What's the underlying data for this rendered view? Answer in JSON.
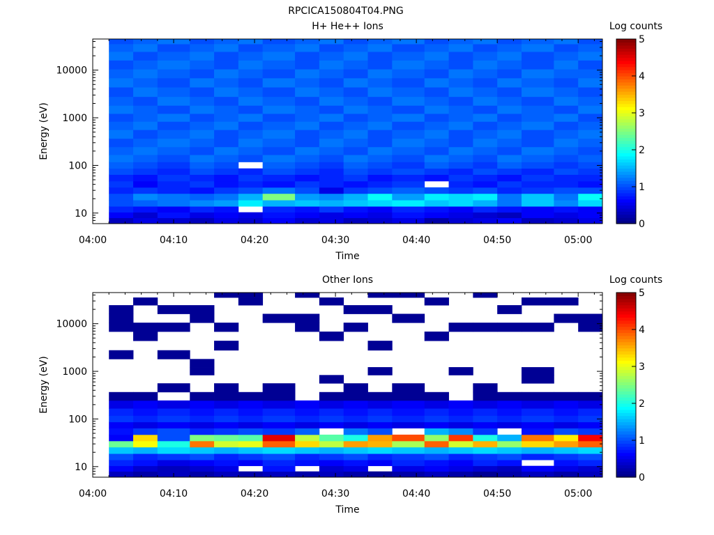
{
  "figure_title": "RPCICA150804T04.PNG",
  "chart_data": [
    {
      "type": "heatmap",
      "title": "H+ He++ Ions",
      "xlabel": "Time",
      "ylabel": "Energy (eV)",
      "colorbar_label": "Log counts",
      "colormap": "jet",
      "x_ticks": [
        "04:00",
        "04:10",
        "04:20",
        "04:30",
        "04:40",
        "04:50",
        "05:00"
      ],
      "x_range": [
        "04:00",
        "05:03"
      ],
      "y_scale": "log",
      "y_ticks": [
        "10",
        "100",
        "1000",
        "10000"
      ],
      "y_range": [
        6,
        45000
      ],
      "color_range": [
        0,
        5
      ],
      "colorbar_ticks": [
        "0",
        "1",
        "2",
        "3",
        "4",
        "5"
      ],
      "time_bins": [
        "04:02",
        "04:05",
        "04:08",
        "04:12",
        "04:15",
        "04:18",
        "04:21",
        "04:25",
        "04:28",
        "04:31",
        "04:34",
        "04:37",
        "04:41",
        "04:44",
        "04:47",
        "04:50",
        "04:53",
        "04:57",
        "05:00"
      ],
      "energy_bands_eV": [
        7,
        9,
        12,
        16,
        22,
        30,
        40,
        55,
        75,
        100,
        140,
        200,
        300,
        450,
        700,
        1000,
        1500,
        2200,
        3500,
        5500,
        8500,
        13000,
        20000,
        30000,
        42000
      ],
      "values_log_counts": [
        [
          0.3,
          0.5,
          0.4,
          0.3,
          0.5,
          0.4,
          0.6,
          0.4,
          0.5,
          0.3,
          0.4,
          0.5,
          0.2,
          0.4,
          0.5,
          0.6,
          0.3,
          0.4,
          0.5
        ],
        [
          0.6,
          0.4,
          0.7,
          0.5,
          0.6,
          0.5,
          0.7,
          0.6,
          0.5,
          0.6,
          0.5,
          0.7,
          0.6,
          0.5,
          0.4,
          0.3,
          0.6,
          0.5,
          0.6
        ],
        [
          0.8,
          0.7,
          0.6,
          0.8,
          0.7,
          null,
          0.8,
          0.7,
          0.9,
          0.7,
          0.6,
          0.8,
          0.7,
          0.6,
          0.8,
          0.7,
          0.6,
          0.7,
          0.6
        ],
        [
          1.0,
          1.1,
          1.2,
          1.3,
          1.4,
          1.8,
          1.5,
          1.6,
          1.5,
          1.6,
          1.7,
          1.8,
          1.6,
          1.7,
          1.5,
          1.2,
          1.6,
          1.3,
          1.7
        ],
        [
          1.0,
          1.3,
          1.2,
          1.1,
          1.2,
          1.5,
          2.5,
          1.4,
          1.3,
          1.5,
          1.9,
          1.4,
          1.8,
          1.7,
          1.8,
          1.2,
          1.6,
          1.2,
          1.9
        ],
        [
          0.8,
          0.9,
          0.8,
          0.7,
          0.9,
          1.0,
          1.2,
          1.0,
          0.5,
          0.9,
          1.0,
          1.1,
          1.0,
          0.9,
          1.0,
          0.8,
          0.9,
          1.0,
          1.0
        ],
        [
          0.9,
          0.6,
          0.8,
          0.9,
          0.7,
          0.8,
          0.7,
          0.9,
          0.8,
          0.7,
          0.8,
          0.9,
          null,
          0.8,
          0.7,
          0.9,
          0.8,
          0.8,
          0.7
        ],
        [
          0.8,
          0.7,
          0.9,
          0.8,
          0.7,
          0.9,
          0.8,
          0.7,
          0.8,
          0.9,
          0.7,
          0.8,
          0.7,
          0.9,
          0.8,
          0.7,
          0.9,
          0.8,
          0.8
        ],
        [
          1.0,
          0.9,
          0.8,
          1.0,
          0.9,
          0.8,
          1.0,
          0.9,
          0.8,
          1.0,
          0.9,
          1.0,
          0.9,
          0.8,
          1.0,
          0.9,
          0.8,
          1.0,
          0.9
        ],
        [
          1.1,
          1.0,
          0.9,
          1.1,
          1.0,
          null,
          1.1,
          1.0,
          0.9,
          1.1,
          1.0,
          0.9,
          1.1,
          1.0,
          0.9,
          1.1,
          1.0,
          0.9,
          1.0
        ],
        [
          1.2,
          1.1,
          1.0,
          1.2,
          1.1,
          1.0,
          1.2,
          1.1,
          1.0,
          1.2,
          1.1,
          1.0,
          1.2,
          1.1,
          1.0,
          1.2,
          1.1,
          1.0,
          1.1
        ],
        [
          1.1,
          1.2,
          1.1,
          1.0,
          1.2,
          1.1,
          1.0,
          1.2,
          1.1,
          1.0,
          1.2,
          1.1,
          1.0,
          1.2,
          1.1,
          1.0,
          1.2,
          1.1,
          1.0
        ],
        [
          1.0,
          1.1,
          1.2,
          1.1,
          1.0,
          1.2,
          1.1,
          1.0,
          1.2,
          1.1,
          1.0,
          1.2,
          1.1,
          1.0,
          1.2,
          1.1,
          1.0,
          1.2,
          1.1
        ],
        [
          1.2,
          1.0,
          1.1,
          1.2,
          1.0,
          1.1,
          1.2,
          1.0,
          1.1,
          1.2,
          1.0,
          1.1,
          1.2,
          1.0,
          1.1,
          1.2,
          1.0,
          1.1,
          1.2
        ],
        [
          1.1,
          1.2,
          1.0,
          1.1,
          1.2,
          1.0,
          1.1,
          1.2,
          1.0,
          1.1,
          1.2,
          1.0,
          1.1,
          1.2,
          1.0,
          1.1,
          1.2,
          1.0,
          1.1
        ],
        [
          1.0,
          1.1,
          1.2,
          1.0,
          1.1,
          1.2,
          1.0,
          1.1,
          1.2,
          1.0,
          1.1,
          1.2,
          1.0,
          1.1,
          1.2,
          1.0,
          1.1,
          1.2,
          1.0
        ],
        [
          1.2,
          1.1,
          1.0,
          1.2,
          1.1,
          1.0,
          1.2,
          1.1,
          1.0,
          1.2,
          1.1,
          1.0,
          1.2,
          1.1,
          1.0,
          1.2,
          1.1,
          1.0,
          1.2
        ],
        [
          1.1,
          1.0,
          1.2,
          1.1,
          1.0,
          1.2,
          1.1,
          1.0,
          1.2,
          1.1,
          1.0,
          1.2,
          1.1,
          1.0,
          1.2,
          1.1,
          1.0,
          1.2,
          1.1
        ],
        [
          1.0,
          1.2,
          1.1,
          1.0,
          1.2,
          1.1,
          1.0,
          1.2,
          1.1,
          1.0,
          1.2,
          1.1,
          1.0,
          1.2,
          1.1,
          1.0,
          1.2,
          1.1,
          1.0
        ],
        [
          1.2,
          1.1,
          1.0,
          1.2,
          1.1,
          1.0,
          1.2,
          1.1,
          1.0,
          1.2,
          1.1,
          1.0,
          1.2,
          1.1,
          1.0,
          1.2,
          1.1,
          1.0,
          1.2
        ],
        [
          1.1,
          1.2,
          1.1,
          1.0,
          1.2,
          1.1,
          1.0,
          1.2,
          1.1,
          1.0,
          1.2,
          1.1,
          1.0,
          1.2,
          1.1,
          1.0,
          1.2,
          1.1,
          1.1
        ],
        [
          1.0,
          1.1,
          1.2,
          1.1,
          1.0,
          1.2,
          1.1,
          1.0,
          1.2,
          1.1,
          1.0,
          1.2,
          1.1,
          1.0,
          1.2,
          1.1,
          1.0,
          1.2,
          1.0
        ],
        [
          1.2,
          1.0,
          1.1,
          1.2,
          1.0,
          1.1,
          1.2,
          1.0,
          1.1,
          1.2,
          1.0,
          1.1,
          1.2,
          1.0,
          1.1,
          1.2,
          1.0,
          1.1,
          1.2
        ],
        [
          1.1,
          1.2,
          1.0,
          1.1,
          1.2,
          1.0,
          1.1,
          1.2,
          1.0,
          1.1,
          1.2,
          1.0,
          1.1,
          1.2,
          1.0,
          1.1,
          1.2,
          1.0,
          1.1
        ],
        [
          1.0,
          1.1,
          1.2,
          1.0,
          1.1,
          1.2,
          1.0,
          1.1,
          1.2,
          1.0,
          1.1,
          1.2,
          1.0,
          1.1,
          1.2,
          1.0,
          1.1,
          1.2,
          1.0
        ]
      ]
    },
    {
      "type": "heatmap",
      "title": "Other Ions",
      "xlabel": "Time",
      "ylabel": "Energy (eV)",
      "colorbar_label": "Log counts",
      "colormap": "jet",
      "x_ticks": [
        "04:00",
        "04:10",
        "04:20",
        "04:30",
        "04:40",
        "04:50",
        "05:00"
      ],
      "x_range": [
        "04:00",
        "05:03"
      ],
      "y_scale": "log",
      "y_ticks": [
        "10",
        "100",
        "1000",
        "10000"
      ],
      "y_range": [
        6,
        45000
      ],
      "color_range": [
        0,
        5
      ],
      "colorbar_ticks": [
        "0",
        "1",
        "2",
        "3",
        "4",
        "5"
      ],
      "time_bins": [
        "04:02",
        "04:05",
        "04:08",
        "04:12",
        "04:15",
        "04:18",
        "04:21",
        "04:25",
        "04:28",
        "04:31",
        "04:34",
        "04:37",
        "04:41",
        "04:44",
        "04:47",
        "04:50",
        "04:53",
        "04:57",
        "05:00"
      ],
      "energy_bands_eV": [
        7,
        9,
        12,
        16,
        22,
        30,
        40,
        55,
        75,
        100,
        140,
        200,
        300,
        450,
        700,
        1000,
        1500,
        2200,
        3500,
        5500,
        8500,
        13000,
        20000,
        30000,
        42000
      ],
      "values_log_counts": [
        [
          0.3,
          0.2,
          0.3,
          0.2,
          0.3,
          0.2,
          0.3,
          0.2,
          0.3,
          0.2,
          0.1,
          0.2,
          0.3,
          0.2,
          0.1,
          0.2,
          0.3,
          0.2,
          0.3
        ],
        [
          0.6,
          0.4,
          0.3,
          0.4,
          0.5,
          null,
          0.7,
          null,
          0.4,
          0.5,
          null,
          0.5,
          0.6,
          0.5,
          0.4,
          0.3,
          0.6,
          0.5,
          0.4
        ],
        [
          0.8,
          0.7,
          0.5,
          0.6,
          0.7,
          0.6,
          0.8,
          0.7,
          0.6,
          0.7,
          0.6,
          0.8,
          0.7,
          0.6,
          0.8,
          0.7,
          null,
          0.7,
          0.8
        ],
        [
          1.0,
          0.8,
          0.9,
          1.0,
          0.8,
          0.9,
          1.0,
          0.8,
          0.9,
          1.0,
          0.8,
          0.9,
          1.0,
          0.8,
          0.9,
          1.0,
          0.8,
          0.9,
          1.0
        ],
        [
          1.6,
          1.5,
          1.7,
          1.6,
          1.5,
          1.6,
          1.7,
          1.6,
          1.5,
          1.6,
          1.7,
          1.6,
          1.5,
          1.6,
          1.7,
          1.6,
          1.5,
          1.6,
          1.7
        ],
        [
          2.4,
          3.1,
          2.0,
          3.8,
          2.9,
          3.0,
          3.9,
          3.3,
          2.8,
          3.6,
          3.5,
          2.7,
          3.9,
          2.9,
          3.5,
          2.6,
          3.3,
          3.6,
          3.9
        ],
        [
          0.6,
          3.3,
          1.0,
          2.5,
          2.4,
          2.3,
          4.5,
          2.8,
          2.3,
          2.0,
          3.6,
          4.0,
          2.6,
          4.1,
          2.0,
          1.5,
          3.8,
          3.2,
          4.4
        ],
        [
          0.7,
          0.9,
          1.0,
          0.8,
          0.9,
          1.0,
          0.9,
          1.1,
          null,
          1.2,
          1.0,
          null,
          1.5,
          1.3,
          0.9,
          null,
          0.7,
          1.0,
          0.9
        ],
        [
          0.6,
          0.5,
          0.6,
          0.5,
          0.6,
          0.5,
          0.6,
          0.5,
          0.6,
          0.5,
          0.6,
          0.5,
          0.6,
          0.5,
          0.6,
          0.5,
          0.6,
          0.5,
          0.6
        ],
        [
          0.9,
          0.8,
          0.9,
          0.8,
          0.9,
          0.8,
          0.9,
          0.8,
          0.9,
          0.8,
          0.9,
          0.8,
          0.9,
          0.8,
          0.9,
          0.8,
          0.9,
          0.8,
          0.9
        ],
        [
          0.8,
          0.7,
          0.8,
          0.7,
          0.8,
          0.7,
          0.8,
          0.7,
          0.8,
          0.7,
          0.8,
          0.7,
          0.8,
          0.7,
          0.8,
          0.7,
          0.8,
          0.7,
          0.8
        ],
        [
          0.5,
          0.6,
          0.5,
          0.6,
          0.5,
          0.6,
          0.5,
          0.6,
          0.5,
          0.6,
          0.5,
          0.6,
          0.5,
          0.6,
          0.5,
          0.6,
          0.5,
          0.6,
          0.5
        ],
        [
          0.1,
          0.1,
          null,
          0.1,
          0.1,
          0.1,
          0.1,
          null,
          0.1,
          0.1,
          0.1,
          0.1,
          0.1,
          null,
          0.1,
          0.1,
          0.1,
          0.1,
          0.1
        ],
        [
          null,
          null,
          0.1,
          null,
          0.1,
          null,
          0.1,
          null,
          null,
          0.1,
          null,
          0.1,
          null,
          null,
          0.1,
          null,
          null,
          null,
          null
        ],
        [
          null,
          null,
          null,
          null,
          null,
          null,
          null,
          null,
          0.1,
          null,
          null,
          null,
          null,
          null,
          null,
          null,
          0.1,
          null,
          null
        ],
        [
          null,
          null,
          null,
          0.1,
          null,
          null,
          null,
          null,
          null,
          null,
          0.1,
          null,
          null,
          0.1,
          null,
          null,
          0.1,
          null,
          null
        ],
        [
          null,
          null,
          null,
          0.1,
          null,
          null,
          null,
          null,
          null,
          null,
          null,
          null,
          null,
          null,
          null,
          null,
          null,
          null,
          null
        ],
        [
          0.1,
          null,
          0.1,
          null,
          null,
          null,
          null,
          null,
          null,
          null,
          null,
          null,
          null,
          null,
          null,
          null,
          null,
          null,
          null
        ],
        [
          null,
          null,
          null,
          null,
          0.1,
          null,
          null,
          null,
          null,
          null,
          0.1,
          null,
          null,
          null,
          null,
          null,
          null,
          null,
          null
        ],
        [
          null,
          0.1,
          null,
          null,
          null,
          null,
          null,
          null,
          0.1,
          null,
          null,
          null,
          0.1,
          null,
          null,
          null,
          null,
          null,
          null
        ],
        [
          0.1,
          0.1,
          0.1,
          null,
          0.1,
          null,
          null,
          0.1,
          null,
          0.1,
          null,
          null,
          null,
          0.1,
          0.1,
          0.1,
          0.1,
          null,
          0.1
        ],
        [
          0.1,
          null,
          null,
          0.1,
          null,
          null,
          0.1,
          0.1,
          null,
          null,
          null,
          0.1,
          null,
          null,
          null,
          null,
          null,
          0.1,
          0.1
        ],
        [
          0.1,
          null,
          0.1,
          0.1,
          null,
          null,
          null,
          null,
          null,
          0.1,
          0.1,
          null,
          null,
          null,
          null,
          0.1,
          null,
          null,
          null
        ],
        [
          null,
          0.1,
          null,
          null,
          null,
          0.1,
          null,
          null,
          0.1,
          null,
          null,
          null,
          0.1,
          null,
          null,
          null,
          0.1,
          0.1,
          null
        ],
        [
          null,
          null,
          null,
          null,
          0.1,
          0.1,
          null,
          0.1,
          null,
          null,
          0.1,
          0.1,
          null,
          null,
          0.1,
          null,
          null,
          null,
          null
        ]
      ]
    }
  ]
}
